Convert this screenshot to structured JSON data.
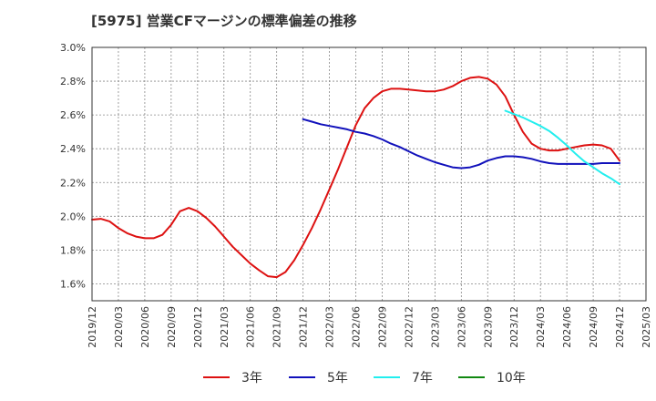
{
  "chart_data": {
    "type": "line",
    "title": "[5975]  営業CFマージンの標準偏差の推移",
    "xlabel": "",
    "ylabel": "",
    "ylim": [
      1.5,
      3.0
    ],
    "yticks": [
      "1.6%",
      "1.8%",
      "2.0%",
      "2.2%",
      "2.4%",
      "2.6%",
      "2.8%",
      "3.0%"
    ],
    "ytick_values": [
      1.6,
      1.8,
      2.0,
      2.2,
      2.4,
      2.6,
      2.8,
      3.0
    ],
    "xticks": [
      "2019/12",
      "2020/03",
      "2020/06",
      "2020/09",
      "2020/12",
      "2021/03",
      "2021/06",
      "2021/09",
      "2021/12",
      "2022/03",
      "2022/06",
      "2022/09",
      "2022/12",
      "2023/03",
      "2023/06",
      "2023/09",
      "2023/12",
      "2024/03",
      "2024/06",
      "2024/09",
      "2024/12",
      "2025/03"
    ],
    "grid": true,
    "legend_position": "bottom",
    "series": [
      {
        "name": "3年",
        "color": "#dd1111",
        "points": [
          [
            "2019/12",
            1.98
          ],
          [
            "2020/01",
            1.985
          ],
          [
            "2020/02",
            1.97
          ],
          [
            "2020/03",
            1.93
          ],
          [
            "2020/04",
            1.9
          ],
          [
            "2020/05",
            1.88
          ],
          [
            "2020/06",
            1.87
          ],
          [
            "2020/07",
            1.87
          ],
          [
            "2020/08",
            1.89
          ],
          [
            "2020/09",
            1.95
          ],
          [
            "2020/10",
            2.03
          ],
          [
            "2020/11",
            2.05
          ],
          [
            "2020/12",
            2.03
          ],
          [
            "2021/01",
            1.99
          ],
          [
            "2021/02",
            1.94
          ],
          [
            "2021/03",
            1.88
          ],
          [
            "2021/04",
            1.82
          ],
          [
            "2021/05",
            1.77
          ],
          [
            "2021/06",
            1.72
          ],
          [
            "2021/07",
            1.68
          ],
          [
            "2021/08",
            1.645
          ],
          [
            "2021/09",
            1.64
          ],
          [
            "2021/10",
            1.67
          ],
          [
            "2021/11",
            1.74
          ],
          [
            "2021/12",
            1.83
          ],
          [
            "2022/01",
            1.93
          ],
          [
            "2022/02",
            2.04
          ],
          [
            "2022/03",
            2.16
          ],
          [
            "2022/04",
            2.28
          ],
          [
            "2022/05",
            2.41
          ],
          [
            "2022/06",
            2.54
          ],
          [
            "2022/07",
            2.64
          ],
          [
            "2022/08",
            2.7
          ],
          [
            "2022/09",
            2.74
          ],
          [
            "2022/10",
            2.755
          ],
          [
            "2022/11",
            2.755
          ],
          [
            "2022/12",
            2.75
          ],
          [
            "2023/01",
            2.745
          ],
          [
            "2023/02",
            2.74
          ],
          [
            "2023/03",
            2.74
          ],
          [
            "2023/04",
            2.75
          ],
          [
            "2023/05",
            2.77
          ],
          [
            "2023/06",
            2.8
          ],
          [
            "2023/07",
            2.82
          ],
          [
            "2023/08",
            2.825
          ],
          [
            "2023/09",
            2.815
          ],
          [
            "2023/10",
            2.78
          ],
          [
            "2023/11",
            2.71
          ],
          [
            "2023/12",
            2.6
          ],
          [
            "2024/01",
            2.5
          ],
          [
            "2024/02",
            2.43
          ],
          [
            "2024/03",
            2.4
          ],
          [
            "2024/04",
            2.39
          ],
          [
            "2024/05",
            2.39
          ],
          [
            "2024/06",
            2.4
          ],
          [
            "2024/07",
            2.41
          ],
          [
            "2024/08",
            2.42
          ],
          [
            "2024/09",
            2.425
          ],
          [
            "2024/10",
            2.42
          ],
          [
            "2024/11",
            2.4
          ],
          [
            "2024/12",
            2.33
          ]
        ]
      },
      {
        "name": "5年",
        "color": "#1111bb",
        "points": [
          [
            "2021/12",
            2.575
          ],
          [
            "2022/01",
            2.56
          ],
          [
            "2022/02",
            2.545
          ],
          [
            "2022/03",
            2.535
          ],
          [
            "2022/04",
            2.525
          ],
          [
            "2022/05",
            2.515
          ],
          [
            "2022/06",
            2.5
          ],
          [
            "2022/07",
            2.49
          ],
          [
            "2022/08",
            2.475
          ],
          [
            "2022/09",
            2.455
          ],
          [
            "2022/10",
            2.43
          ],
          [
            "2022/11",
            2.41
          ],
          [
            "2022/12",
            2.385
          ],
          [
            "2023/01",
            2.36
          ],
          [
            "2023/02",
            2.34
          ],
          [
            "2023/03",
            2.32
          ],
          [
            "2023/04",
            2.305
          ],
          [
            "2023/05",
            2.29
          ],
          [
            "2023/06",
            2.285
          ],
          [
            "2023/07",
            2.29
          ],
          [
            "2023/08",
            2.305
          ],
          [
            "2023/09",
            2.33
          ],
          [
            "2023/10",
            2.345
          ],
          [
            "2023/11",
            2.355
          ],
          [
            "2023/12",
            2.355
          ],
          [
            "2024/01",
            2.35
          ],
          [
            "2024/02",
            2.34
          ],
          [
            "2024/03",
            2.325
          ],
          [
            "2024/04",
            2.315
          ],
          [
            "2024/05",
            2.31
          ],
          [
            "2024/06",
            2.31
          ],
          [
            "2024/07",
            2.31
          ],
          [
            "2024/08",
            2.31
          ],
          [
            "2024/09",
            2.31
          ],
          [
            "2024/10",
            2.315
          ],
          [
            "2024/11",
            2.315
          ],
          [
            "2024/12",
            2.315
          ]
        ]
      },
      {
        "name": "7年",
        "color": "#22eeee",
        "points": [
          [
            "2023/11",
            2.625
          ],
          [
            "2023/12",
            2.605
          ],
          [
            "2024/01",
            2.585
          ],
          [
            "2024/02",
            2.56
          ],
          [
            "2024/03",
            2.535
          ],
          [
            "2024/04",
            2.505
          ],
          [
            "2024/05",
            2.465
          ],
          [
            "2024/06",
            2.42
          ],
          [
            "2024/07",
            2.37
          ],
          [
            "2024/08",
            2.325
          ],
          [
            "2024/09",
            2.29
          ],
          [
            "2024/10",
            2.255
          ],
          [
            "2024/11",
            2.225
          ],
          [
            "2024/12",
            2.19
          ]
        ]
      },
      {
        "name": "10年",
        "color": "#118811",
        "points": []
      }
    ]
  }
}
